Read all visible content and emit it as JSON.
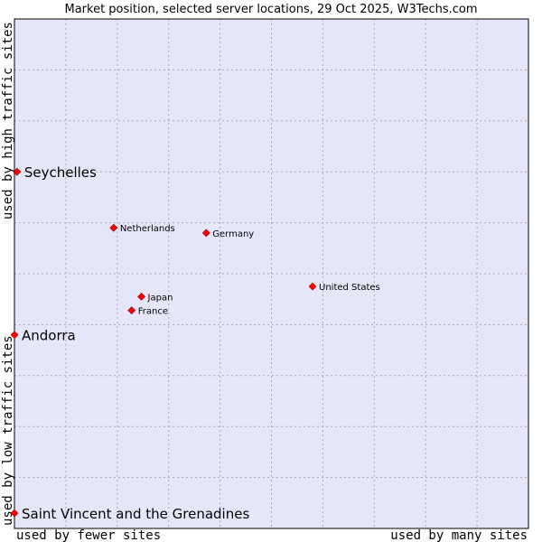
{
  "chart_data": {
    "type": "scatter",
    "title": "Market position, selected server locations, 29 Oct 2025, W3Techs.com",
    "xlabel_left": "used by fewer sites",
    "xlabel_right": "used by many sites",
    "ylabel_bottom": "used by low traffic sites",
    "ylabel_top": "used by high traffic sites",
    "xlim": [
      0,
      10
    ],
    "ylim": [
      0,
      10
    ],
    "grid": true,
    "colors": {
      "plot_bg": "#e6e6fa",
      "grid": "#aaaaaa",
      "point": "#ff0000",
      "point_edge": "#990000",
      "frame": "#000000"
    },
    "points": [
      {
        "label": "Seychelles",
        "x": 0.05,
        "y": 7.0,
        "emphasis": true
      },
      {
        "label": "Andorra",
        "x": 0.0,
        "y": 3.8,
        "emphasis": true
      },
      {
        "label": "Saint Vincent and the Grenadines",
        "x": 0.0,
        "y": 0.3,
        "emphasis": true
      },
      {
        "label": "Netherlands",
        "x": 1.93,
        "y": 5.9,
        "emphasis": false
      },
      {
        "label": "Germany",
        "x": 3.73,
        "y": 5.8,
        "emphasis": false
      },
      {
        "label": "United States",
        "x": 5.8,
        "y": 4.75,
        "emphasis": false
      },
      {
        "label": "Japan",
        "x": 2.47,
        "y": 4.55,
        "emphasis": false
      },
      {
        "label": "France",
        "x": 2.28,
        "y": 4.28,
        "emphasis": false
      }
    ]
  }
}
